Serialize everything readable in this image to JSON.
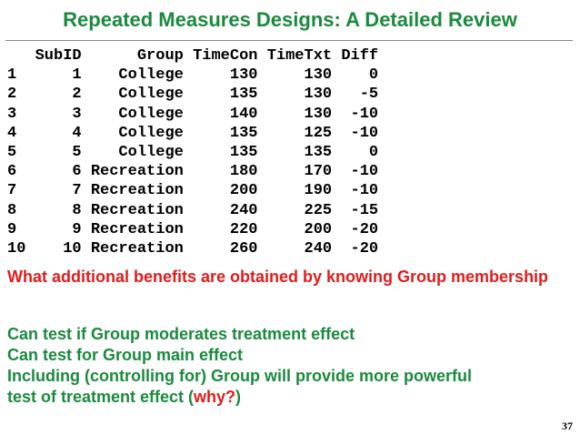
{
  "slide": {
    "title": "Repeated Measures Designs:  A Detailed Review",
    "page_number": "37"
  },
  "table": {
    "columns": [
      "SubID",
      "Group",
      "TimeCon",
      "TimeTxt",
      "Diff"
    ],
    "rows": [
      {
        "row": "1",
        "SubID": "1",
        "Group": "College",
        "TimeCon": "130",
        "TimeTxt": "130",
        "Diff": "0"
      },
      {
        "row": "2",
        "SubID": "2",
        "Group": "College",
        "TimeCon": "135",
        "TimeTxt": "130",
        "Diff": "-5"
      },
      {
        "row": "3",
        "SubID": "3",
        "Group": "College",
        "TimeCon": "140",
        "TimeTxt": "130",
        "Diff": "-10"
      },
      {
        "row": "4",
        "SubID": "4",
        "Group": "College",
        "TimeCon": "135",
        "TimeTxt": "125",
        "Diff": "-10"
      },
      {
        "row": "5",
        "SubID": "5",
        "Group": "College",
        "TimeCon": "135",
        "TimeTxt": "135",
        "Diff": "0"
      },
      {
        "row": "6",
        "SubID": "6",
        "Group": "Recreation",
        "TimeCon": "180",
        "TimeTxt": "170",
        "Diff": "-10"
      },
      {
        "row": "7",
        "SubID": "7",
        "Group": "Recreation",
        "TimeCon": "200",
        "TimeTxt": "190",
        "Diff": "-10"
      },
      {
        "row": "8",
        "SubID": "8",
        "Group": "Recreation",
        "TimeCon": "240",
        "TimeTxt": "225",
        "Diff": "-15"
      },
      {
        "row": "9",
        "SubID": "9",
        "Group": "Recreation",
        "TimeCon": "220",
        "TimeTxt": "200",
        "Diff": "-20"
      },
      {
        "row": "10",
        "SubID": "10",
        "Group": "Recreation",
        "TimeCon": "260",
        "TimeTxt": "240",
        "Diff": "-20"
      }
    ]
  },
  "question": "What additional benefits are obtained by knowing Group membership",
  "answers": {
    "line1": "Can test if Group moderates treatment effect",
    "line2": "Can test for Group main effect",
    "line3": "Including (controlling for) Group will provide more powerful",
    "line4_start": "test of treatment effect (",
    "line4_emphasis": "why?",
    "line4_end": ")"
  },
  "colors": {
    "title": "#1a8a3e",
    "answers": "#1a8a3e",
    "question": "#e31b1b",
    "emphasis": "#e31b1b",
    "table_text": "#000000",
    "background": "#ffffff"
  }
}
